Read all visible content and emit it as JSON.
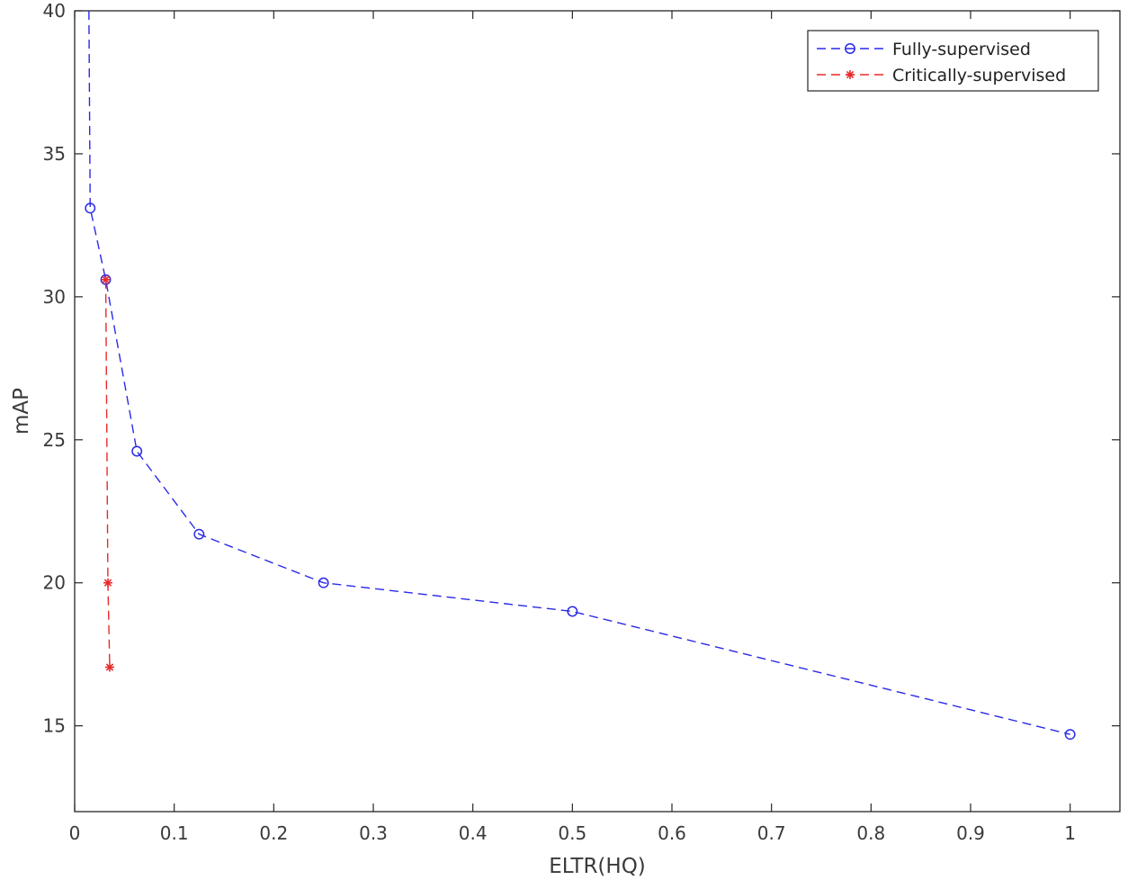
{
  "chart_data": {
    "type": "line",
    "title": "",
    "xlabel": "ELTR(HQ)",
    "ylabel": "mAP",
    "xlim": [
      0,
      1.05
    ],
    "ylim": [
      12,
      40
    ],
    "x_ticks": [
      0,
      0.1,
      0.2,
      0.3,
      0.4,
      0.5,
      0.6,
      0.7,
      0.8,
      0.9,
      1
    ],
    "x_tick_labels": [
      "0",
      "0.1",
      "0.2",
      "0.3",
      "0.4",
      "0.5",
      "0.6",
      "0.7",
      "0.8",
      "0.9",
      "1"
    ],
    "y_ticks": [
      15,
      20,
      25,
      30,
      35,
      40
    ],
    "y_tick_labels": [
      "15",
      "20",
      "25",
      "30",
      "35",
      "40"
    ],
    "grid": false,
    "legend_position": "top-right",
    "series": [
      {
        "name": "Fully-supervised",
        "color": "#2a2ae8",
        "line_style": "dashed",
        "marker": "circle",
        "x": [
          0.0143,
          0.0156,
          0.0312,
          0.0625,
          0.125,
          0.25,
          0.5,
          1.0
        ],
        "y": [
          40.0,
          33.1,
          30.6,
          24.6,
          21.7,
          20.0,
          19.0,
          14.7
        ],
        "marker_mask": [
          false,
          true,
          true,
          true,
          true,
          true,
          true,
          true
        ]
      },
      {
        "name": "Critically-supervised",
        "color": "#e82a2a",
        "line_style": "dashed",
        "marker": "asterisk",
        "x": [
          0.0312,
          0.0334,
          0.0352
        ],
        "y": [
          30.6,
          20.0,
          17.05
        ],
        "marker_mask": [
          true,
          true,
          true
        ]
      }
    ]
  }
}
